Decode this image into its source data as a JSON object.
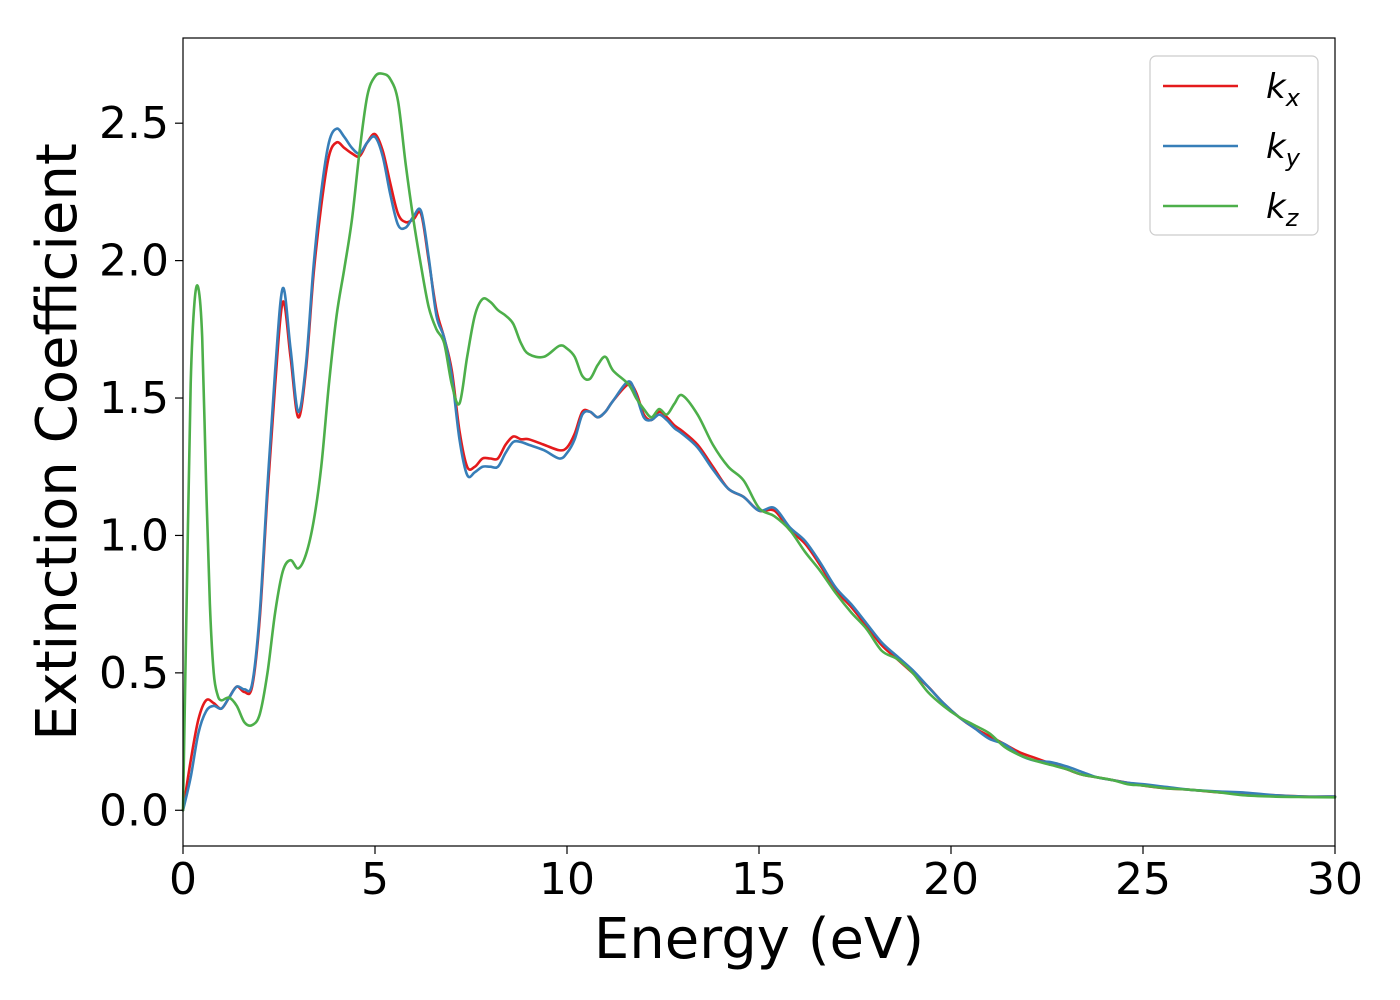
{
  "chart_data": {
    "type": "line",
    "title": "",
    "xlabel": "Energy (eV)",
    "ylabel": "Extinction Coefficient",
    "xlim": [
      0,
      30
    ],
    "ylim": [
      -0.13,
      2.81
    ],
    "xticks": [
      0,
      5,
      10,
      15,
      20,
      25,
      30
    ],
    "xtick_labels": [
      "0",
      "5",
      "10",
      "15",
      "20",
      "25",
      "30"
    ],
    "yticks": [
      0.0,
      0.5,
      1.0,
      1.5,
      2.0,
      2.5
    ],
    "ytick_labels": [
      "0.0",
      "0.5",
      "1.0",
      "1.5",
      "2.0",
      "2.5"
    ],
    "grid": false,
    "legend_position": "top-right",
    "series": [
      {
        "name": "k_x",
        "label_main": "k",
        "label_sub": "x",
        "color": "#e41a1c",
        "points": [
          [
            0,
            0.0
          ],
          [
            0.2,
            0.18
          ],
          [
            0.4,
            0.33
          ],
          [
            0.6,
            0.4
          ],
          [
            0.8,
            0.39
          ],
          [
            1.0,
            0.37
          ],
          [
            1.2,
            0.41
          ],
          [
            1.4,
            0.45
          ],
          [
            1.6,
            0.43
          ],
          [
            1.8,
            0.45
          ],
          [
            2.0,
            0.7
          ],
          [
            2.2,
            1.15
          ],
          [
            2.4,
            1.55
          ],
          [
            2.6,
            1.85
          ],
          [
            2.8,
            1.65
          ],
          [
            3.0,
            1.43
          ],
          [
            3.2,
            1.6
          ],
          [
            3.4,
            1.95
          ],
          [
            3.6,
            2.2
          ],
          [
            3.8,
            2.38
          ],
          [
            4.0,
            2.43
          ],
          [
            4.2,
            2.41
          ],
          [
            4.4,
            2.39
          ],
          [
            4.6,
            2.38
          ],
          [
            4.8,
            2.43
          ],
          [
            5.0,
            2.46
          ],
          [
            5.2,
            2.4
          ],
          [
            5.4,
            2.28
          ],
          [
            5.6,
            2.17
          ],
          [
            5.8,
            2.14
          ],
          [
            6.0,
            2.15
          ],
          [
            6.2,
            2.17
          ],
          [
            6.4,
            2.0
          ],
          [
            6.6,
            1.82
          ],
          [
            6.8,
            1.72
          ],
          [
            7.0,
            1.6
          ],
          [
            7.2,
            1.38
          ],
          [
            7.4,
            1.25
          ],
          [
            7.6,
            1.25
          ],
          [
            7.8,
            1.28
          ],
          [
            8.0,
            1.28
          ],
          [
            8.2,
            1.28
          ],
          [
            8.4,
            1.33
          ],
          [
            8.6,
            1.36
          ],
          [
            8.8,
            1.35
          ],
          [
            9.0,
            1.35
          ],
          [
            9.4,
            1.33
          ],
          [
            9.8,
            1.31
          ],
          [
            10.0,
            1.32
          ],
          [
            10.2,
            1.37
          ],
          [
            10.4,
            1.45
          ],
          [
            10.6,
            1.45
          ],
          [
            10.8,
            1.43
          ],
          [
            11.0,
            1.45
          ],
          [
            11.2,
            1.49
          ],
          [
            11.6,
            1.55
          ],
          [
            11.8,
            1.52
          ],
          [
            12.0,
            1.44
          ],
          [
            12.2,
            1.42
          ],
          [
            12.4,
            1.45
          ],
          [
            12.6,
            1.43
          ],
          [
            12.8,
            1.4
          ],
          [
            13.0,
            1.38
          ],
          [
            13.4,
            1.33
          ],
          [
            13.8,
            1.25
          ],
          [
            14.2,
            1.17
          ],
          [
            14.6,
            1.14
          ],
          [
            15.0,
            1.09
          ],
          [
            15.4,
            1.09
          ],
          [
            15.8,
            1.02
          ],
          [
            16.2,
            0.97
          ],
          [
            16.6,
            0.89
          ],
          [
            17.0,
            0.8
          ],
          [
            17.4,
            0.74
          ],
          [
            17.8,
            0.67
          ],
          [
            18.2,
            0.6
          ],
          [
            18.6,
            0.55
          ],
          [
            19.0,
            0.5
          ],
          [
            19.4,
            0.45
          ],
          [
            19.8,
            0.39
          ],
          [
            20.2,
            0.34
          ],
          [
            20.6,
            0.3
          ],
          [
            21.0,
            0.27
          ],
          [
            21.4,
            0.24
          ],
          [
            21.8,
            0.21
          ],
          [
            22.2,
            0.19
          ],
          [
            22.6,
            0.17
          ],
          [
            23.0,
            0.15
          ],
          [
            23.4,
            0.13
          ],
          [
            23.8,
            0.12
          ],
          [
            24.2,
            0.11
          ],
          [
            24.6,
            0.1
          ],
          [
            25.0,
            0.09
          ],
          [
            25.6,
            0.08
          ],
          [
            26.2,
            0.075
          ],
          [
            27.0,
            0.065
          ],
          [
            27.6,
            0.06
          ],
          [
            28.4,
            0.055
          ],
          [
            29.2,
            0.05
          ],
          [
            30.0,
            0.05
          ]
        ]
      },
      {
        "name": "k_y",
        "label_main": "k",
        "label_sub": "y",
        "color": "#377eb8",
        "points": [
          [
            0,
            0.0
          ],
          [
            0.2,
            0.12
          ],
          [
            0.4,
            0.28
          ],
          [
            0.6,
            0.36
          ],
          [
            0.8,
            0.38
          ],
          [
            1.0,
            0.37
          ],
          [
            1.2,
            0.41
          ],
          [
            1.4,
            0.45
          ],
          [
            1.6,
            0.44
          ],
          [
            1.8,
            0.46
          ],
          [
            2.0,
            0.72
          ],
          [
            2.2,
            1.18
          ],
          [
            2.4,
            1.6
          ],
          [
            2.6,
            1.9
          ],
          [
            2.8,
            1.68
          ],
          [
            3.0,
            1.45
          ],
          [
            3.2,
            1.62
          ],
          [
            3.4,
            1.98
          ],
          [
            3.6,
            2.25
          ],
          [
            3.8,
            2.43
          ],
          [
            4.0,
            2.48
          ],
          [
            4.2,
            2.45
          ],
          [
            4.4,
            2.41
          ],
          [
            4.6,
            2.39
          ],
          [
            4.8,
            2.43
          ],
          [
            5.0,
            2.45
          ],
          [
            5.2,
            2.38
          ],
          [
            5.4,
            2.24
          ],
          [
            5.6,
            2.13
          ],
          [
            5.8,
            2.12
          ],
          [
            6.0,
            2.16
          ],
          [
            6.2,
            2.18
          ],
          [
            6.4,
            2.01
          ],
          [
            6.6,
            1.8
          ],
          [
            6.8,
            1.72
          ],
          [
            7.0,
            1.58
          ],
          [
            7.2,
            1.35
          ],
          [
            7.4,
            1.22
          ],
          [
            7.6,
            1.23
          ],
          [
            7.8,
            1.25
          ],
          [
            8.0,
            1.25
          ],
          [
            8.2,
            1.25
          ],
          [
            8.4,
            1.3
          ],
          [
            8.6,
            1.34
          ],
          [
            8.8,
            1.34
          ],
          [
            9.0,
            1.33
          ],
          [
            9.4,
            1.31
          ],
          [
            9.8,
            1.28
          ],
          [
            10.0,
            1.3
          ],
          [
            10.2,
            1.35
          ],
          [
            10.4,
            1.44
          ],
          [
            10.6,
            1.45
          ],
          [
            10.8,
            1.43
          ],
          [
            11.0,
            1.45
          ],
          [
            11.2,
            1.49
          ],
          [
            11.6,
            1.56
          ],
          [
            11.8,
            1.51
          ],
          [
            12.0,
            1.43
          ],
          [
            12.2,
            1.42
          ],
          [
            12.4,
            1.44
          ],
          [
            12.6,
            1.42
          ],
          [
            12.8,
            1.39
          ],
          [
            13.0,
            1.37
          ],
          [
            13.4,
            1.32
          ],
          [
            13.8,
            1.24
          ],
          [
            14.2,
            1.17
          ],
          [
            14.6,
            1.14
          ],
          [
            15.0,
            1.09
          ],
          [
            15.4,
            1.1
          ],
          [
            15.8,
            1.03
          ],
          [
            16.2,
            0.98
          ],
          [
            16.6,
            0.9
          ],
          [
            17.0,
            0.81
          ],
          [
            17.4,
            0.75
          ],
          [
            17.8,
            0.68
          ],
          [
            18.2,
            0.61
          ],
          [
            18.6,
            0.56
          ],
          [
            19.0,
            0.51
          ],
          [
            19.4,
            0.45
          ],
          [
            19.8,
            0.39
          ],
          [
            20.2,
            0.34
          ],
          [
            20.6,
            0.3
          ],
          [
            21.0,
            0.26
          ],
          [
            21.4,
            0.24
          ],
          [
            21.8,
            0.2
          ],
          [
            22.2,
            0.18
          ],
          [
            22.6,
            0.175
          ],
          [
            23.0,
            0.16
          ],
          [
            23.4,
            0.14
          ],
          [
            23.8,
            0.12
          ],
          [
            24.2,
            0.11
          ],
          [
            24.6,
            0.1
          ],
          [
            25.0,
            0.095
          ],
          [
            25.6,
            0.085
          ],
          [
            26.2,
            0.075
          ],
          [
            27.0,
            0.068
          ],
          [
            27.6,
            0.065
          ],
          [
            28.4,
            0.055
          ],
          [
            29.2,
            0.05
          ],
          [
            30.0,
            0.05
          ]
        ]
      },
      {
        "name": "k_z",
        "label_main": "k",
        "label_sub": "z",
        "color": "#4daf4a",
        "points": [
          [
            0,
            0.0
          ],
          [
            0.1,
            0.8
          ],
          [
            0.2,
            1.55
          ],
          [
            0.3,
            1.85
          ],
          [
            0.4,
            1.9
          ],
          [
            0.5,
            1.72
          ],
          [
            0.6,
            1.2
          ],
          [
            0.7,
            0.75
          ],
          [
            0.8,
            0.5
          ],
          [
            0.9,
            0.42
          ],
          [
            1.0,
            0.4
          ],
          [
            1.2,
            0.41
          ],
          [
            1.4,
            0.38
          ],
          [
            1.6,
            0.32
          ],
          [
            1.8,
            0.31
          ],
          [
            2.0,
            0.35
          ],
          [
            2.2,
            0.5
          ],
          [
            2.4,
            0.72
          ],
          [
            2.6,
            0.87
          ],
          [
            2.8,
            0.91
          ],
          [
            3.0,
            0.88
          ],
          [
            3.2,
            0.93
          ],
          [
            3.4,
            1.05
          ],
          [
            3.6,
            1.25
          ],
          [
            3.8,
            1.55
          ],
          [
            4.0,
            1.8
          ],
          [
            4.2,
            1.97
          ],
          [
            4.4,
            2.15
          ],
          [
            4.6,
            2.4
          ],
          [
            4.8,
            2.6
          ],
          [
            5.0,
            2.67
          ],
          [
            5.2,
            2.68
          ],
          [
            5.4,
            2.66
          ],
          [
            5.6,
            2.58
          ],
          [
            5.8,
            2.35
          ],
          [
            6.0,
            2.15
          ],
          [
            6.2,
            1.98
          ],
          [
            6.4,
            1.83
          ],
          [
            6.6,
            1.75
          ],
          [
            6.8,
            1.7
          ],
          [
            7.0,
            1.55
          ],
          [
            7.2,
            1.48
          ],
          [
            7.4,
            1.65
          ],
          [
            7.6,
            1.8
          ],
          [
            7.8,
            1.86
          ],
          [
            8.0,
            1.85
          ],
          [
            8.2,
            1.82
          ],
          [
            8.4,
            1.8
          ],
          [
            8.6,
            1.77
          ],
          [
            8.8,
            1.7
          ],
          [
            9.0,
            1.66
          ],
          [
            9.4,
            1.65
          ],
          [
            9.8,
            1.69
          ],
          [
            10.0,
            1.68
          ],
          [
            10.2,
            1.65
          ],
          [
            10.4,
            1.58
          ],
          [
            10.6,
            1.57
          ],
          [
            10.8,
            1.62
          ],
          [
            11.0,
            1.65
          ],
          [
            11.2,
            1.6
          ],
          [
            11.6,
            1.55
          ],
          [
            11.8,
            1.5
          ],
          [
            12.0,
            1.46
          ],
          [
            12.2,
            1.43
          ],
          [
            12.4,
            1.46
          ],
          [
            12.6,
            1.44
          ],
          [
            12.8,
            1.48
          ],
          [
            13.0,
            1.51
          ],
          [
            13.4,
            1.44
          ],
          [
            13.8,
            1.33
          ],
          [
            14.2,
            1.25
          ],
          [
            14.6,
            1.2
          ],
          [
            15.0,
            1.1
          ],
          [
            15.4,
            1.07
          ],
          [
            15.8,
            1.02
          ],
          [
            16.2,
            0.94
          ],
          [
            16.6,
            0.87
          ],
          [
            17.0,
            0.79
          ],
          [
            17.4,
            0.72
          ],
          [
            17.8,
            0.66
          ],
          [
            18.2,
            0.58
          ],
          [
            18.6,
            0.55
          ],
          [
            19.0,
            0.5
          ],
          [
            19.4,
            0.43
          ],
          [
            19.8,
            0.38
          ],
          [
            20.2,
            0.34
          ],
          [
            20.6,
            0.31
          ],
          [
            21.0,
            0.28
          ],
          [
            21.4,
            0.23
          ],
          [
            21.8,
            0.2
          ],
          [
            22.2,
            0.18
          ],
          [
            22.6,
            0.165
          ],
          [
            23.0,
            0.15
          ],
          [
            23.4,
            0.13
          ],
          [
            23.8,
            0.12
          ],
          [
            24.2,
            0.11
          ],
          [
            24.6,
            0.095
          ],
          [
            25.0,
            0.09
          ],
          [
            25.6,
            0.08
          ],
          [
            26.2,
            0.075
          ],
          [
            27.0,
            0.065
          ],
          [
            27.6,
            0.055
          ],
          [
            28.4,
            0.05
          ],
          [
            29.2,
            0.048
          ],
          [
            30.0,
            0.047
          ]
        ]
      }
    ]
  }
}
